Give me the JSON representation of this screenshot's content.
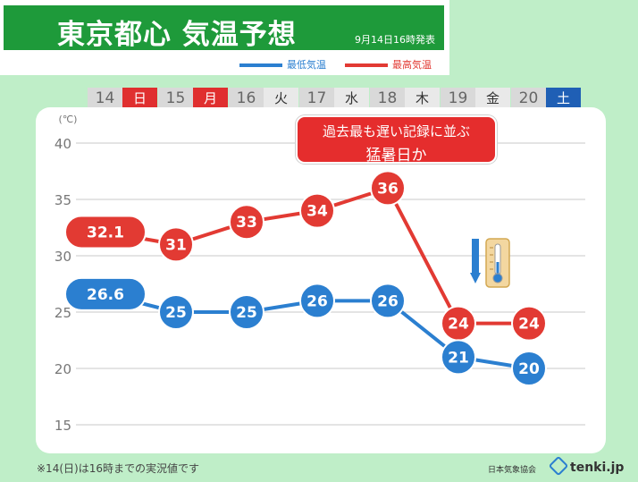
{
  "header": {
    "title": "東京都心 気温予想",
    "issued": "9月14日16時発表"
  },
  "legend": {
    "low_label": "最低気温",
    "high_label": "最高気温"
  },
  "days": [
    {
      "num": "14",
      "weekday": "日",
      "type": "sun"
    },
    {
      "num": "15",
      "weekday": "月",
      "type": "mon"
    },
    {
      "num": "16",
      "weekday": "火",
      "type": "weekday"
    },
    {
      "num": "17",
      "weekday": "水",
      "type": "weekday"
    },
    {
      "num": "18",
      "weekday": "木",
      "type": "weekday"
    },
    {
      "num": "19",
      "weekday": "金",
      "type": "weekday"
    },
    {
      "num": "20",
      "weekday": "土",
      "type": "sat"
    }
  ],
  "callout": {
    "line1": "過去最も遅い記録に並ぶ",
    "line2": "猛暑日か"
  },
  "footnote": "※14(日)は16時までの実況値です",
  "source": {
    "agency": "日本気象協会",
    "brand": "tenki.jp"
  },
  "colors": {
    "high": "#e23a33",
    "low": "#2b7fd0",
    "background": "#bfeec8",
    "title_bar": "#1e9a3a"
  },
  "chart_data": {
    "type": "line",
    "categories": [
      "14",
      "15",
      "16",
      "17",
      "18",
      "19",
      "20"
    ],
    "series": [
      {
        "name": "最高気温",
        "values": [
          32.1,
          31,
          33,
          34,
          36,
          24,
          24
        ],
        "labels": [
          "32.1",
          "31",
          "33",
          "34",
          "36",
          "24",
          "24"
        ]
      },
      {
        "name": "最低気温",
        "values": [
          26.6,
          25,
          25,
          26,
          26,
          21,
          20
        ],
        "labels": [
          "26.6",
          "25",
          "25",
          "26",
          "26",
          "21",
          "20"
        ]
      }
    ],
    "yunit": "(℃)",
    "yticks": [
      15,
      20,
      25,
      30,
      35,
      40
    ],
    "ylim": [
      15,
      40
    ],
    "grid": true,
    "legend": "top"
  }
}
